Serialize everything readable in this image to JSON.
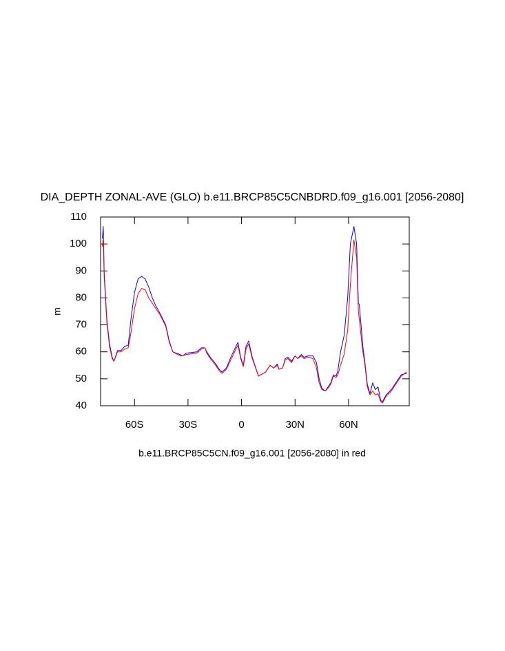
{
  "chart_data": {
    "type": "line",
    "title": "DIA_DEPTH ZONAL-AVE (GLO) b.e11.BRCP85C5CNBDRD.f09_g16.001 [2056-2080]",
    "y_label": "m",
    "x_label": "b.e11.BRCP85C5CN.f09_g16.001 [2056-2080] in red",
    "xlim": [
      -79,
      94
    ],
    "xticks": [
      {
        "value": -60,
        "label": "60S"
      },
      {
        "value": -30,
        "label": "30S"
      },
      0,
      {
        "value": 30,
        "label": "30N"
      },
      {
        "value": 60,
        "label": "60N"
      }
    ],
    "ylim": [
      40,
      110
    ],
    "yticks": [
      40,
      50,
      60,
      70,
      80,
      90,
      100,
      110
    ],
    "x": [
      -78,
      -77.5,
      -77,
      -75.5,
      -74,
      -72.5,
      -71.5,
      -69.5,
      -67.5,
      -65.5,
      -63.5,
      -62,
      -60,
      -58,
      -56,
      -54,
      -52,
      -50,
      -48,
      -45.5,
      -42.5,
      -40.5,
      -38.5,
      -34.5,
      -33,
      -31,
      -25,
      -22.5,
      -20.5,
      -19.5,
      -17.5,
      -14.5,
      -12.5,
      -11,
      -8.5,
      -6,
      -3.5,
      -2,
      -0.5,
      1,
      2.5,
      4,
      6,
      9.5,
      13.5,
      16,
      18,
      20,
      21,
      23,
      24.5,
      26,
      28,
      30,
      31.5,
      33.5,
      35,
      37.5,
      40,
      42,
      43.5,
      45,
      47,
      48.5,
      50,
      51.5,
      53,
      54,
      55.5,
      57.5,
      59.5,
      61,
      63,
      64.5,
      65.5,
      66,
      68,
      69,
      70.5,
      72,
      73.5,
      75,
      76.5,
      78,
      79,
      81,
      84,
      86,
      88,
      89.5,
      92.5
    ],
    "series": [
      {
        "color": "#0000ff",
        "values": [
          102,
          106.5,
          90,
          72,
          63,
          58,
          56.5,
          60.5,
          60.5,
          62,
          62.5,
          72,
          82,
          87,
          88,
          87,
          84,
          80,
          77,
          74,
          70,
          64,
          60,
          59,
          58.5,
          59.5,
          60,
          61.5,
          61.5,
          60,
          58,
          55.5,
          53.5,
          52.5,
          54,
          58,
          61.5,
          63.5,
          58,
          55,
          62,
          64,
          58,
          51,
          52.5,
          55,
          54,
          55.5,
          53.5,
          54,
          57.5,
          58,
          56.5,
          58.5,
          57.5,
          59,
          58,
          58.5,
          58.5,
          56,
          50,
          46.5,
          45.5,
          47,
          48.5,
          51.5,
          51,
          53,
          60,
          66,
          80,
          100,
          106.5,
          100,
          78,
          77.5,
          62,
          57,
          48,
          44.5,
          48.5,
          46,
          47,
          42,
          41.5,
          44,
          46,
          48,
          50,
          51.5,
          52
        ]
      },
      {
        "color": "#ff0000",
        "values": [
          99,
          102,
          88,
          71,
          62,
          57.5,
          56.5,
          60,
          60,
          61,
          61.5,
          67,
          76,
          81.5,
          83.5,
          83,
          80,
          78,
          76,
          73.5,
          69.5,
          63.5,
          60,
          58.5,
          58.5,
          59,
          59.5,
          61,
          61.5,
          59.5,
          57.5,
          55,
          53,
          52,
          53.5,
          57,
          60.5,
          62.5,
          57.5,
          54.5,
          61,
          63,
          57.5,
          51,
          52.5,
          55,
          54,
          55,
          53.5,
          54,
          57,
          57.5,
          56,
          58.5,
          57.5,
          58.5,
          57.5,
          58,
          57.5,
          54,
          48.5,
          46,
          45.5,
          46.5,
          48,
          51,
          50.5,
          51.5,
          55,
          59,
          68,
          85,
          101.5,
          95,
          75,
          72,
          60,
          56,
          47,
          44,
          45.5,
          44,
          44.5,
          41.5,
          41,
          43.5,
          45.5,
          47.5,
          49.5,
          51,
          52.5
        ]
      }
    ]
  }
}
